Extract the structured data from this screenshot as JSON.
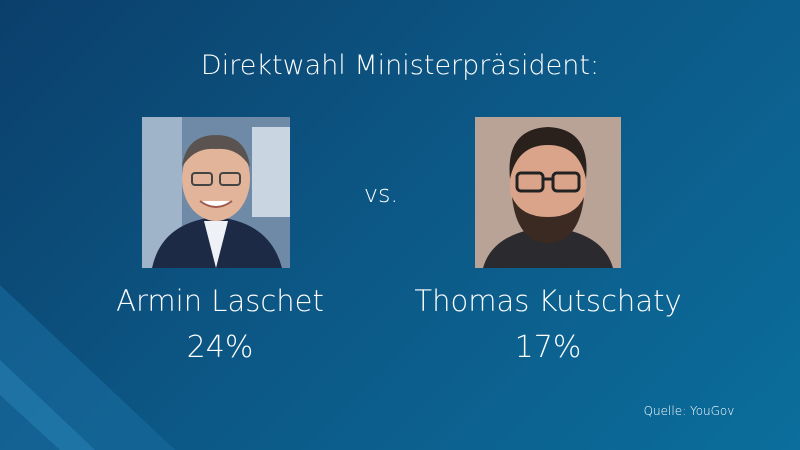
{
  "title": "Direktwahl Ministerpräsident:",
  "versus": "vs.",
  "candidates": [
    {
      "name": "Armin Laschet",
      "share": "24%"
    },
    {
      "name": "Thomas Kutschaty",
      "share": "17%"
    }
  ],
  "source": "Quelle: YouGov"
}
